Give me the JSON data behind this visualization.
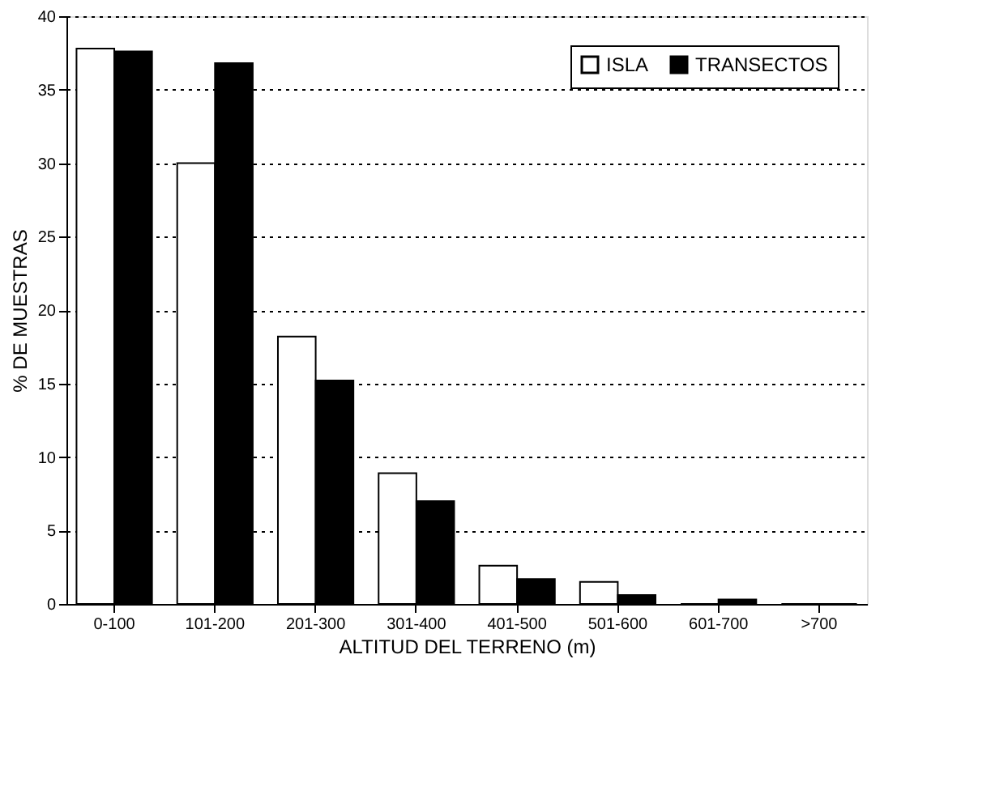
{
  "chart_data": {
    "type": "bar",
    "xlabel": "ALTITUD DEL TERRENO (m)",
    "ylabel": "% DE MUESTRAS",
    "categories": [
      "0-100",
      "101-200",
      "201-300",
      "301-400",
      "401-500",
      "501-600",
      "601-700",
      ">700"
    ],
    "series": [
      {
        "name": "ISLA",
        "color": "#ffffff",
        "values": [
          37.8,
          30,
          18.2,
          8.9,
          2.6,
          1.5,
          0,
          0
        ]
      },
      {
        "name": "TRANSECTOS",
        "color": "#000000",
        "values": [
          37.6,
          36.8,
          15.2,
          7,
          1.7,
          0.6,
          0.3,
          0
        ]
      }
    ],
    "ylim": [
      0,
      40
    ],
    "yticks": [
      0,
      5,
      10,
      15,
      20,
      25,
      30,
      35,
      40
    ],
    "grid": "y",
    "legend": "top right"
  }
}
